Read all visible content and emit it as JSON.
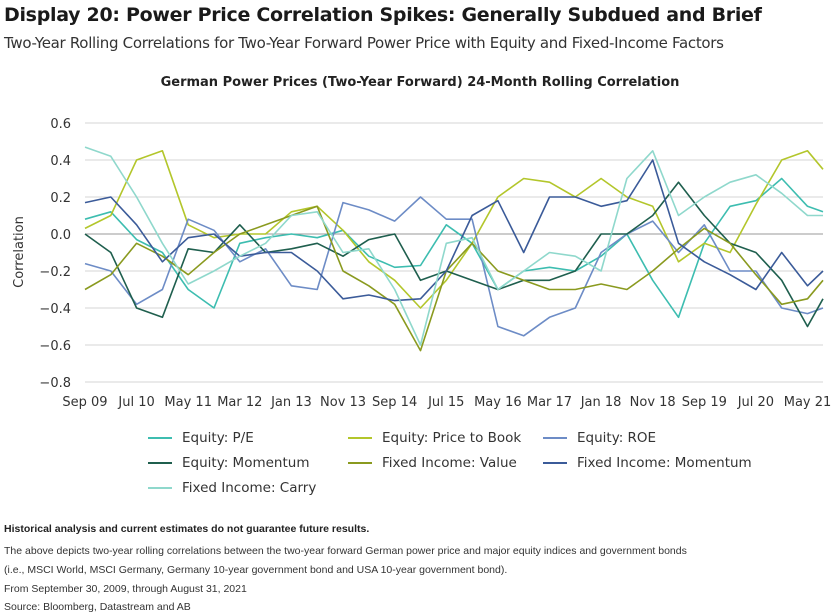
{
  "header": {
    "title": "Display 20: Power Price Correlation Spikes: Generally Subdued and Brief",
    "subtitle": "Two-Year Rolling Correlations for Two-Year Forward Power Price with Equity and Fixed-Income Factors"
  },
  "chart_data": {
    "type": "line",
    "title": "German Power Prices (Two-Year Forward) 24-Month Rolling Correlation",
    "xlabel": "",
    "ylabel": "Correlation",
    "ylim": [
      -0.8,
      0.6
    ],
    "yticks": [
      0.6,
      0.4,
      0.2,
      0.0,
      -0.2,
      -0.4,
      -0.6,
      -0.8
    ],
    "ytick_labels": [
      "0.6",
      "0.4",
      "0.2",
      "0.0",
      "−0.2",
      "−0.4",
      "−0.6",
      "−0.8"
    ],
    "xtick_labels": [
      "Sep 09",
      "Jul 10",
      "May 11",
      "Mar 12",
      "Jan 13",
      "Nov 13",
      "Sep 14",
      "Jul 15",
      "May 16",
      "Mar 17",
      "Jan 18",
      "Nov 18",
      "Sep 19",
      "Jul 20",
      "May 21"
    ],
    "xtick_months": [
      0,
      10,
      20,
      30,
      40,
      50,
      60,
      70,
      80,
      90,
      100,
      110,
      120,
      130,
      140
    ],
    "xlim_months": [
      0,
      143
    ],
    "x_months": [
      0,
      5,
      10,
      15,
      20,
      25,
      30,
      35,
      40,
      45,
      50,
      55,
      60,
      65,
      70,
      75,
      80,
      85,
      90,
      95,
      100,
      105,
      110,
      115,
      120,
      125,
      130,
      135,
      140,
      143
    ],
    "grid": true,
    "legend_placement": "bottom",
    "series": [
      {
        "name": "Equity: P/E",
        "color": "#3dbdb0",
        "values": [
          0.08,
          0.12,
          -0.03,
          -0.1,
          -0.3,
          -0.4,
          -0.05,
          -0.02,
          0.0,
          -0.02,
          0.02,
          -0.12,
          -0.18,
          -0.17,
          0.05,
          -0.05,
          -0.3,
          -0.2,
          -0.18,
          -0.2,
          -0.12,
          0.0,
          -0.25,
          -0.45,
          -0.05,
          0.15,
          0.18,
          0.3,
          0.15,
          0.12
        ]
      },
      {
        "name": "Equity: Price to Book",
        "color": "#b3c62b",
        "values": [
          0.03,
          0.1,
          0.4,
          0.45,
          0.05,
          -0.02,
          0.0,
          0.0,
          0.12,
          0.15,
          0.02,
          -0.15,
          -0.25,
          -0.4,
          -0.25,
          -0.05,
          0.2,
          0.3,
          0.28,
          0.2,
          0.3,
          0.2,
          0.15,
          -0.15,
          -0.05,
          -0.1,
          0.16,
          0.4,
          0.45,
          0.35
        ]
      },
      {
        "name": "Equity: ROE",
        "color": "#6d8cc6",
        "values": [
          -0.16,
          -0.2,
          -0.38,
          -0.3,
          0.08,
          0.02,
          -0.15,
          -0.08,
          -0.28,
          -0.3,
          0.17,
          0.13,
          0.07,
          0.2,
          0.08,
          0.08,
          -0.5,
          -0.55,
          -0.45,
          -0.4,
          -0.1,
          0.0,
          0.07,
          -0.1,
          0.05,
          -0.2,
          -0.2,
          -0.4,
          -0.43,
          -0.4
        ]
      },
      {
        "name": "Equity: Momentum",
        "color": "#1f5f4e",
        "values": [
          0.0,
          -0.1,
          -0.4,
          -0.45,
          -0.08,
          -0.1,
          0.05,
          -0.1,
          -0.08,
          -0.05,
          -0.12,
          -0.03,
          0.0,
          -0.25,
          -0.2,
          -0.25,
          -0.3,
          -0.25,
          -0.25,
          -0.2,
          0.0,
          0.0,
          0.1,
          0.28,
          0.1,
          -0.05,
          -0.1,
          -0.25,
          -0.5,
          -0.35
        ]
      },
      {
        "name": "Fixed Income: Value",
        "color": "#8a9a1f",
        "values": [
          -0.3,
          -0.22,
          -0.05,
          -0.12,
          -0.22,
          -0.1,
          0.0,
          0.05,
          0.1,
          0.15,
          -0.2,
          -0.28,
          -0.38,
          -0.63,
          -0.2,
          -0.05,
          -0.2,
          -0.25,
          -0.3,
          -0.3,
          -0.27,
          -0.3,
          -0.2,
          -0.08,
          0.03,
          -0.05,
          -0.22,
          -0.38,
          -0.35,
          -0.25
        ]
      },
      {
        "name": "Fixed Income: Momentum",
        "color": "#3b5b99",
        "values": [
          0.17,
          0.2,
          0.05,
          -0.15,
          -0.02,
          0.0,
          -0.12,
          -0.1,
          -0.1,
          -0.2,
          -0.35,
          -0.33,
          -0.36,
          -0.35,
          -0.2,
          0.1,
          0.18,
          -0.1,
          0.2,
          0.2,
          0.15,
          0.18,
          0.4,
          -0.05,
          -0.15,
          -0.22,
          -0.3,
          -0.1,
          -0.28,
          -0.2
        ]
      },
      {
        "name": "Fixed Income: Carry",
        "color": "#8fd8cc",
        "values": [
          0.47,
          0.42,
          0.2,
          -0.05,
          -0.27,
          -0.2,
          -0.12,
          -0.05,
          0.1,
          0.12,
          -0.1,
          -0.08,
          -0.3,
          -0.6,
          -0.05,
          -0.02,
          -0.3,
          -0.2,
          -0.1,
          -0.12,
          -0.2,
          0.3,
          0.45,
          0.1,
          0.2,
          0.28,
          0.32,
          0.22,
          0.1,
          0.1
        ]
      }
    ]
  },
  "footer": {
    "disclaimer": "Historical analysis and current estimates do not guarantee future results.",
    "note_line1": "The above depicts two-year rolling correlations between the two-year forward German power price and major equity indices and government bonds",
    "note_line2": "(i.e., MSCI World, MSCI Germany, Germany 10-year government bond and USA 10-year government bond).",
    "date_range": "From September 30, 2009, through August 31, 2021",
    "source": "Source: Bloomberg, Datastream and AB"
  }
}
